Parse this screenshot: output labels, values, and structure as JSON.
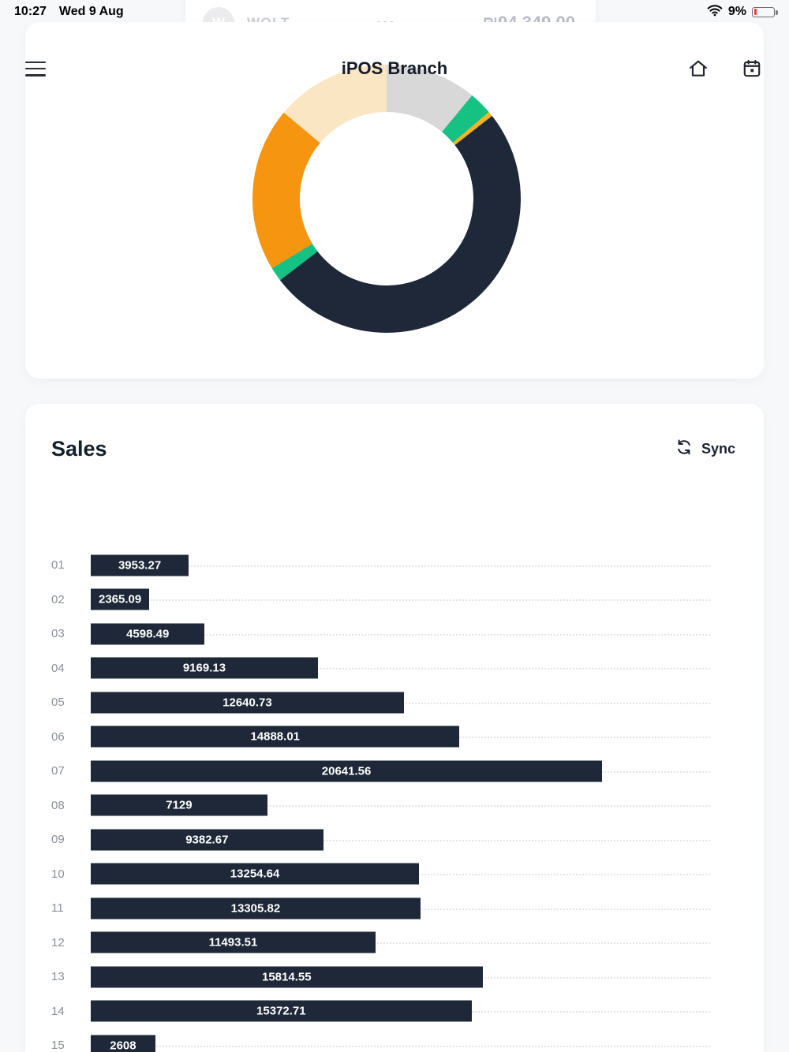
{
  "status_bar": {
    "time": "10:27",
    "date": "Wed 9 Aug",
    "battery_percent": "9%"
  },
  "wolt_row": {
    "initial": "W",
    "name": "WOLT",
    "dots": "•••",
    "amount": "₪94,349.00"
  },
  "header": {
    "title": "iPOS Branch"
  },
  "sales": {
    "title": "Sales",
    "sync_label": "Sync"
  },
  "colors": {
    "bar_navy": "#1e2838",
    "orange": "#f6950f",
    "green": "#16c184",
    "gold": "#f0b429",
    "light_gray": "#d8d8d8",
    "cream": "#fbe6c4",
    "battery_low_red": "#ff3b30"
  },
  "chart_data": [
    {
      "type": "pie",
      "variant": "donut",
      "title": "iPOS Branch sales breakdown",
      "legend": "none",
      "segments": [
        {
          "name": "light-gray",
          "color": "#d8d8d8",
          "value": 11.0
        },
        {
          "name": "green",
          "color": "#16c184",
          "value": 2.8
        },
        {
          "name": "gold",
          "color": "#f0b429",
          "value": 0.6
        },
        {
          "name": "dark-navy",
          "color": "#1e2838",
          "value": 50.2
        },
        {
          "name": "green-2",
          "color": "#16c184",
          "value": 1.7
        },
        {
          "name": "orange",
          "color": "#f6950f",
          "value": 19.8
        },
        {
          "name": "cream",
          "color": "#fbe6c4",
          "value": 13.9
        }
      ]
    },
    {
      "type": "bar",
      "orientation": "horizontal",
      "title": "Sales",
      "categories": [
        "01",
        "02",
        "03",
        "04",
        "05",
        "06",
        "07",
        "08",
        "09",
        "10",
        "11",
        "12",
        "13",
        "14",
        "15"
      ],
      "values": [
        3953.27,
        2365.09,
        4598.49,
        9169.13,
        12640.73,
        14888.01,
        20641.56,
        7129,
        9382.67,
        13254.64,
        13305.82,
        11493.51,
        15814.55,
        15372.71,
        2608
      ],
      "labels": [
        "3953.27",
        "2365.09",
        "4598.49",
        "9169.13",
        "12640.73",
        "14888.01",
        "20641.56",
        "7129",
        "9382.67",
        "13254.64",
        "13305.82",
        "11493.51",
        "15814.55",
        "15372.71",
        "2608"
      ],
      "xlim": [
        0,
        25000
      ],
      "bar_color": "#1e2838",
      "value_label_color": "#ffffff",
      "gridline_style": "dotted"
    }
  ]
}
